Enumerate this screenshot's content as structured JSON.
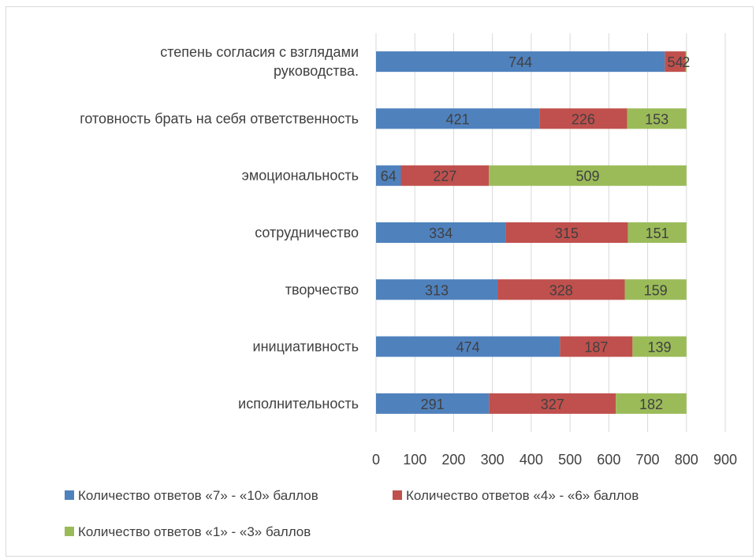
{
  "chart_data": {
    "type": "bar",
    "orientation": "horizontal",
    "stacked": true,
    "title": "",
    "xlabel": "",
    "ylabel": "",
    "categories": [
      "исполнительность",
      "инициативность",
      "творчество",
      "сотрудничество",
      "эмоциональность",
      "готовность брать на себя ответственность",
      "степень согласия с взглядами руководства."
    ],
    "series": [
      {
        "name": "Количество ответов «7» - «10» баллов",
        "color": "#4f81bd",
        "values": [
          291,
          474,
          313,
          334,
          64,
          421,
          744
        ]
      },
      {
        "name": "Количество ответов «4» - «6» баллов",
        "color": "#c0504d",
        "values": [
          327,
          187,
          328,
          315,
          227,
          226,
          54
        ]
      },
      {
        "name": "Количество ответов «1» - «3» баллов",
        "color": "#9bbb59",
        "values": [
          182,
          139,
          159,
          151,
          509,
          153,
          2
        ]
      }
    ],
    "xlim": [
      0,
      900
    ],
    "x_ticks": [
      "0",
      "100",
      "200",
      "300",
      "400",
      "500",
      "600",
      "700",
      "800",
      "900"
    ],
    "grid": true,
    "legend_position": "bottom"
  }
}
